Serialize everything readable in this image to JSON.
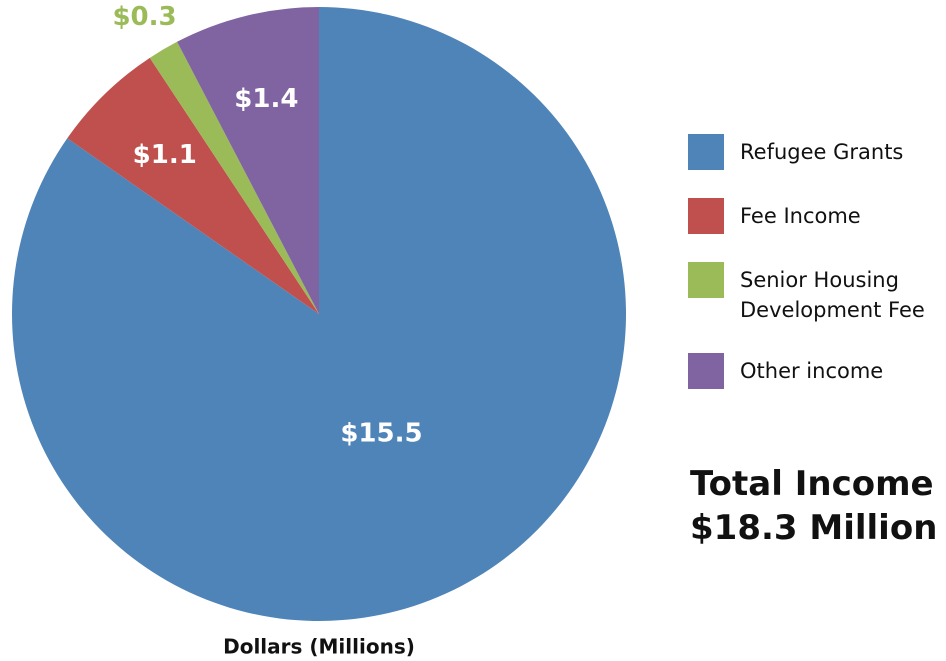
{
  "chart_data": {
    "type": "pie",
    "xlabel": "Dollars (Millions)",
    "categories": [
      "Refugee Grants",
      "Fee Income",
      "Senior Housing Development Fee",
      "Other income"
    ],
    "values": [
      15.5,
      1.1,
      0.3,
      1.4
    ],
    "value_labels": [
      "$15.5",
      "$1.1",
      "$0.3",
      "$1.4"
    ],
    "colors": [
      "#4f84b9",
      "#c0504d",
      "#9bbb59",
      "#8064a2"
    ],
    "legend": "right",
    "annotations": [
      "Total Income",
      "$18.3 Million"
    ]
  }
}
